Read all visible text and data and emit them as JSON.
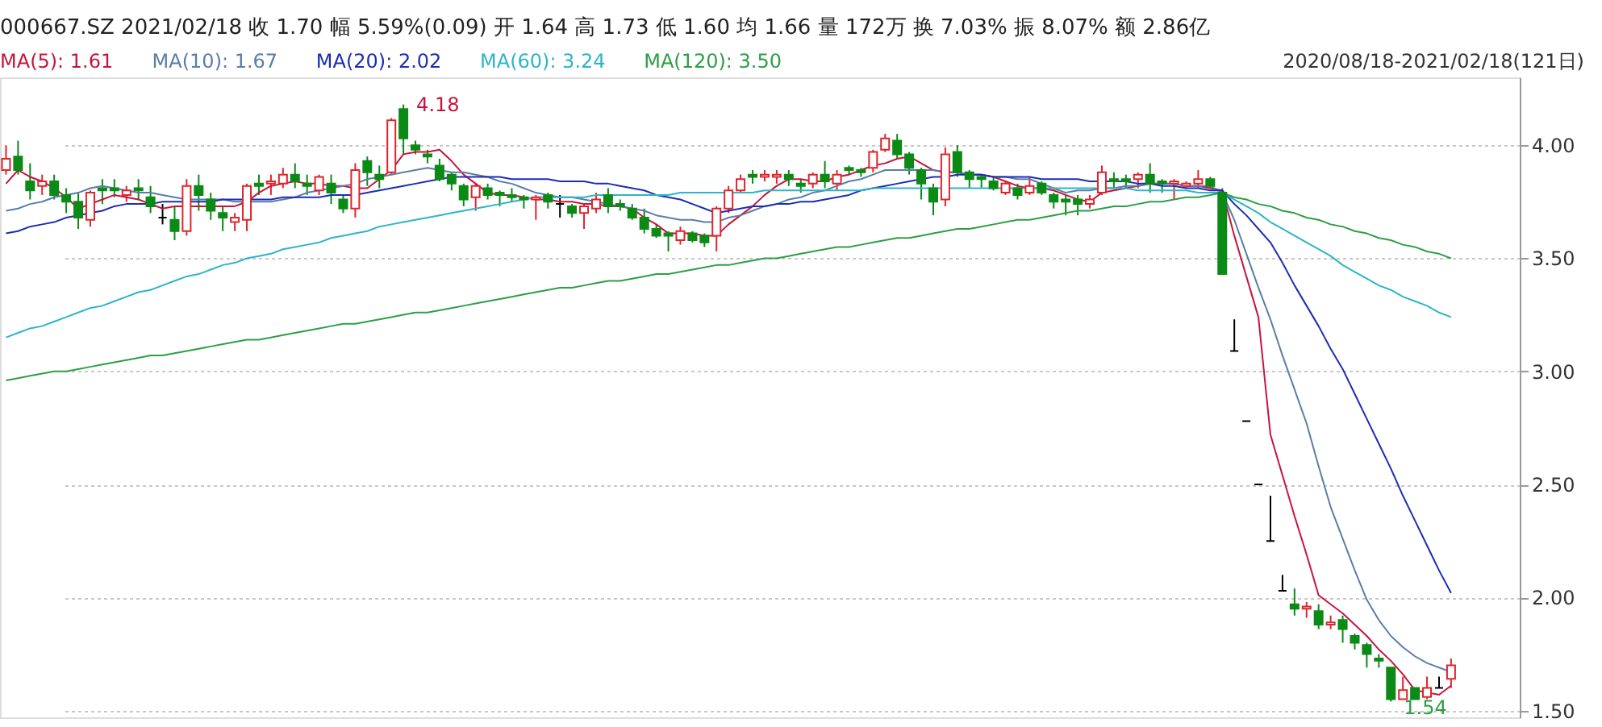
{
  "chart_data": {
    "type": "candlestick",
    "title": "000667.SZ    2021/02/18    收 1.70    幅 5.59%(0.09)    开 1.64    高 1.73    低 1.60    均 1.66    量 172万    换 7.03%    振 8.07%    额 2.86亿",
    "categories": [
      null,
      null,
      null,
      null,
      null,
      null,
      null,
      null,
      null,
      null,
      null,
      null,
      null,
      null,
      null,
      null,
      null,
      null,
      null,
      null,
      null,
      null,
      null,
      null,
      null,
      null,
      null,
      null,
      null,
      null,
      null,
      null,
      null,
      null,
      null,
      null,
      null,
      null,
      null,
      null,
      null,
      null,
      null,
      null,
      null,
      null,
      null,
      null,
      null,
      null,
      null,
      null,
      null,
      null,
      null,
      null,
      null,
      null,
      null,
      null,
      null,
      null,
      null,
      null,
      null,
      null,
      null,
      null,
      null,
      null,
      null,
      null,
      null,
      null,
      null,
      null,
      null,
      null,
      null,
      null,
      null,
      null,
      null,
      null,
      null,
      null,
      null,
      null,
      null,
      null,
      null,
      null,
      null,
      null,
      null,
      null,
      null,
      null,
      null,
      null,
      null,
      null,
      null,
      null,
      null,
      null,
      null,
      null,
      null,
      null,
      null,
      null,
      null,
      null,
      null,
      null,
      null,
      null,
      null,
      null,
      null
    ],
    "ohlc": [
      [
        3.89,
        4.0,
        3.87,
        3.94
      ],
      [
        3.95,
        4.02,
        3.87,
        3.89
      ],
      [
        3.84,
        3.92,
        3.76,
        3.8
      ],
      [
        3.82,
        3.87,
        3.78,
        3.84
      ],
      [
        3.84,
        3.87,
        3.76,
        3.78
      ],
      [
        3.78,
        3.81,
        3.7,
        3.75
      ],
      [
        3.75,
        3.79,
        3.63,
        3.68
      ],
      [
        3.67,
        3.8,
        3.64,
        3.79
      ],
      [
        3.81,
        3.85,
        3.74,
        3.8
      ],
      [
        3.81,
        3.85,
        3.77,
        3.8
      ],
      [
        3.78,
        3.82,
        3.75,
        3.8
      ],
      [
        3.81,
        3.85,
        3.76,
        3.8
      ],
      [
        3.77,
        3.82,
        3.7,
        3.73
      ],
      [
        3.68,
        3.74,
        3.65,
        3.68
      ],
      [
        3.67,
        3.73,
        3.58,
        3.62
      ],
      [
        3.62,
        3.85,
        3.6,
        3.82
      ],
      [
        3.82,
        3.87,
        3.71,
        3.78
      ],
      [
        3.76,
        3.79,
        3.67,
        3.71
      ],
      [
        3.7,
        3.73,
        3.62,
        3.68
      ],
      [
        3.66,
        3.7,
        3.62,
        3.68
      ],
      [
        3.67,
        3.83,
        3.62,
        3.82
      ],
      [
        3.83,
        3.87,
        3.78,
        3.82
      ],
      [
        3.83,
        3.87,
        3.78,
        3.84
      ],
      [
        3.83,
        3.9,
        3.81,
        3.87
      ],
      [
        3.87,
        3.92,
        3.81,
        3.84
      ],
      [
        3.83,
        3.87,
        3.78,
        3.82
      ],
      [
        3.8,
        3.87,
        3.78,
        3.86
      ],
      [
        3.83,
        3.87,
        3.74,
        3.79
      ],
      [
        3.76,
        3.78,
        3.7,
        3.72
      ],
      [
        3.72,
        3.92,
        3.68,
        3.89
      ],
      [
        3.93,
        3.95,
        3.82,
        3.88
      ],
      [
        3.87,
        3.91,
        3.81,
        3.85
      ],
      [
        3.88,
        4.12,
        3.87,
        4.11
      ],
      [
        4.16,
        4.18,
        3.96,
        4.03
      ],
      [
        4.0,
        4.02,
        3.96,
        3.98
      ],
      [
        3.96,
        3.98,
        3.92,
        3.95
      ],
      [
        3.91,
        3.94,
        3.84,
        3.85
      ],
      [
        3.87,
        3.88,
        3.8,
        3.83
      ],
      [
        3.82,
        3.83,
        3.73,
        3.76
      ],
      [
        3.77,
        3.83,
        3.71,
        3.82
      ],
      [
        3.81,
        3.83,
        3.76,
        3.78
      ],
      [
        3.79,
        3.8,
        3.73,
        3.78
      ],
      [
        3.78,
        3.81,
        3.75,
        3.77
      ],
      [
        3.77,
        3.78,
        3.72,
        3.76
      ],
      [
        3.76,
        3.78,
        3.67,
        3.77
      ],
      [
        3.78,
        3.79,
        3.72,
        3.75
      ],
      [
        3.74,
        3.78,
        3.68,
        3.74
      ],
      [
        3.73,
        3.74,
        3.68,
        3.7
      ],
      [
        3.7,
        3.74,
        3.63,
        3.73
      ],
      [
        3.72,
        3.79,
        3.7,
        3.76
      ],
      [
        3.78,
        3.81,
        3.7,
        3.73
      ],
      [
        3.74,
        3.76,
        3.71,
        3.73
      ],
      [
        3.72,
        3.74,
        3.67,
        3.68
      ],
      [
        3.68,
        3.72,
        3.61,
        3.63
      ],
      [
        3.63,
        3.65,
        3.59,
        3.6
      ],
      [
        3.61,
        3.62,
        3.53,
        3.6
      ],
      [
        3.58,
        3.64,
        3.56,
        3.62
      ],
      [
        3.61,
        3.62,
        3.57,
        3.58
      ],
      [
        3.6,
        3.61,
        3.55,
        3.57
      ],
      [
        3.6,
        3.73,
        3.53,
        3.72
      ],
      [
        3.72,
        3.82,
        3.7,
        3.8
      ],
      [
        3.8,
        3.87,
        3.79,
        3.85
      ],
      [
        3.87,
        3.89,
        3.83,
        3.86
      ],
      [
        3.86,
        3.89,
        3.84,
        3.87
      ],
      [
        3.86,
        3.89,
        3.83,
        3.87
      ],
      [
        3.87,
        3.89,
        3.82,
        3.85
      ],
      [
        3.83,
        3.85,
        3.79,
        3.82
      ],
      [
        3.83,
        3.88,
        3.81,
        3.87
      ],
      [
        3.87,
        3.93,
        3.81,
        3.84
      ],
      [
        3.83,
        3.89,
        3.8,
        3.87
      ],
      [
        3.9,
        3.91,
        3.87,
        3.89
      ],
      [
        3.89,
        3.9,
        3.86,
        3.88
      ],
      [
        3.9,
        3.98,
        3.88,
        3.97
      ],
      [
        3.98,
        4.05,
        3.97,
        4.03
      ],
      [
        4.02,
        4.05,
        3.94,
        3.96
      ],
      [
        3.96,
        3.97,
        3.87,
        3.9
      ],
      [
        3.89,
        3.9,
        3.76,
        3.83
      ],
      [
        3.81,
        3.83,
        3.69,
        3.75
      ],
      [
        3.76,
        3.99,
        3.73,
        3.96
      ],
      [
        3.97,
        4.0,
        3.86,
        3.88
      ],
      [
        3.88,
        3.89,
        3.81,
        3.85
      ],
      [
        3.86,
        3.87,
        3.81,
        3.85
      ],
      [
        3.84,
        3.86,
        3.8,
        3.81
      ],
      [
        3.79,
        3.84,
        3.78,
        3.83
      ],
      [
        3.81,
        3.83,
        3.76,
        3.78
      ],
      [
        3.79,
        3.86,
        3.78,
        3.82
      ],
      [
        3.83,
        3.84,
        3.78,
        3.79
      ],
      [
        3.78,
        3.79,
        3.72,
        3.75
      ],
      [
        3.76,
        3.78,
        3.69,
        3.75
      ],
      [
        3.76,
        3.78,
        3.69,
        3.74
      ],
      [
        3.74,
        3.78,
        3.72,
        3.76
      ],
      [
        3.79,
        3.91,
        3.78,
        3.88
      ],
      [
        3.85,
        3.88,
        3.81,
        3.84
      ],
      [
        3.85,
        3.87,
        3.81,
        3.84
      ],
      [
        3.85,
        3.88,
        3.81,
        3.87
      ],
      [
        3.87,
        3.92,
        3.79,
        3.83
      ],
      [
        3.84,
        3.85,
        3.79,
        3.83
      ],
      [
        3.83,
        3.85,
        3.76,
        3.84
      ],
      [
        3.82,
        3.84,
        3.81,
        3.83
      ],
      [
        3.83,
        3.89,
        3.81,
        3.85
      ],
      [
        3.85,
        3.86,
        3.81,
        3.82
      ],
      [
        3.79,
        3.81,
        3.43,
        3.43
      ],
      [
        3.09,
        3.23,
        3.09,
        3.09
      ],
      [
        2.78,
        2.78,
        2.78,
        2.78
      ],
      [
        2.5,
        2.5,
        2.5,
        2.5
      ],
      [
        2.25,
        2.45,
        2.25,
        2.25
      ],
      [
        2.03,
        2.1,
        2.03,
        2.03
      ],
      [
        1.97,
        2.04,
        1.92,
        1.95
      ],
      [
        1.95,
        1.98,
        1.91,
        1.96
      ],
      [
        1.94,
        1.97,
        1.86,
        1.88
      ],
      [
        1.88,
        1.92,
        1.86,
        1.89
      ],
      [
        1.9,
        1.92,
        1.8,
        1.86
      ],
      [
        1.83,
        1.84,
        1.77,
        1.8
      ],
      [
        1.79,
        1.8,
        1.69,
        1.75
      ],
      [
        1.73,
        1.75,
        1.69,
        1.72
      ],
      [
        1.69,
        1.69,
        1.54,
        1.55
      ],
      [
        1.55,
        1.65,
        1.55,
        1.59
      ],
      [
        1.6,
        1.6,
        1.55,
        1.55
      ],
      [
        1.56,
        1.65,
        1.55,
        1.6
      ],
      [
        1.6,
        1.65,
        1.6,
        1.6
      ],
      [
        1.64,
        1.73,
        1.6,
        1.7
      ]
    ],
    "colors": [
      "#e0242c",
      "#0b8a16",
      "#0b8a16",
      "#e0242c",
      "#0b8a16",
      "#0b8a16",
      "#0b8a16",
      "#e0242c",
      "#0b8a16",
      "#0b8a16",
      "#e0242c",
      "#0b8a16",
      "#0b8a16",
      "#000000",
      "#0b8a16",
      "#e0242c",
      "#0b8a16",
      "#0b8a16",
      "#0b8a16",
      "#e0242c",
      "#e0242c",
      "#0b8a16",
      "#e0242c",
      "#e0242c",
      "#0b8a16",
      "#0b8a16",
      "#e0242c",
      "#0b8a16",
      "#0b8a16",
      "#e0242c",
      "#0b8a16",
      "#0b8a16",
      "#e0242c",
      "#0b8a16",
      "#0b8a16",
      "#0b8a16",
      "#0b8a16",
      "#0b8a16",
      "#0b8a16",
      "#e0242c",
      "#0b8a16",
      "#0b8a16",
      "#0b8a16",
      "#0b8a16",
      "#e0242c",
      "#0b8a16",
      "#000000",
      "#0b8a16",
      "#e0242c",
      "#e0242c",
      "#0b8a16",
      "#0b8a16",
      "#0b8a16",
      "#0b8a16",
      "#0b8a16",
      "#0b8a16",
      "#e0242c",
      "#0b8a16",
      "#0b8a16",
      "#e0242c",
      "#e0242c",
      "#e0242c",
      "#0b8a16",
      "#e0242c",
      "#e0242c",
      "#0b8a16",
      "#0b8a16",
      "#e0242c",
      "#0b8a16",
      "#e0242c",
      "#0b8a16",
      "#0b8a16",
      "#e0242c",
      "#e0242c",
      "#0b8a16",
      "#0b8a16",
      "#0b8a16",
      "#0b8a16",
      "#e0242c",
      "#0b8a16",
      "#0b8a16",
      "#0b8a16",
      "#0b8a16",
      "#e0242c",
      "#0b8a16",
      "#e0242c",
      "#0b8a16",
      "#0b8a16",
      "#0b8a16",
      "#0b8a16",
      "#e0242c",
      "#e0242c",
      "#0b8a16",
      "#0b8a16",
      "#e0242c",
      "#0b8a16",
      "#0b8a16",
      "#e0242c",
      "#e0242c",
      "#e0242c",
      "#0b8a16",
      "#0b8a16",
      "#000000",
      "#000000",
      "#000000",
      "#000000",
      "#000000",
      "#0b8a16",
      "#e0242c",
      "#0b8a16",
      "#e0242c",
      "#0b8a16",
      "#0b8a16",
      "#0b8a16",
      "#0b8a16",
      "#0b8a16",
      "#e0242c",
      "#0b8a16",
      "#e0242c",
      "#000000",
      "#e0242c"
    ],
    "series": [
      {
        "name": "MA(5): 1.61",
        "type": "line",
        "color": "#c8143c",
        "values": [
          3.83,
          3.89,
          3.86,
          3.84,
          3.81,
          3.77,
          3.72,
          3.74,
          3.76,
          3.78,
          3.77,
          3.76,
          3.74,
          3.72,
          3.73,
          3.73,
          3.73,
          3.73,
          3.73,
          3.73,
          3.75,
          3.79,
          3.82,
          3.83,
          3.84,
          3.83,
          3.83,
          3.82,
          3.82,
          3.81,
          3.81,
          3.85,
          3.89,
          3.96,
          3.97,
          3.97,
          3.98,
          3.93,
          3.87,
          3.83,
          3.79,
          3.78,
          3.78,
          3.77,
          3.76,
          3.76,
          3.75,
          3.75,
          3.74,
          3.74,
          3.73,
          3.73,
          3.72,
          3.68,
          3.65,
          3.61,
          3.61,
          3.61,
          3.6,
          3.6,
          3.65,
          3.69,
          3.73,
          3.78,
          3.82,
          3.85,
          3.85,
          3.84,
          3.84,
          3.86,
          3.87,
          3.89,
          3.91,
          3.92,
          3.94,
          3.95,
          3.92,
          3.89,
          3.88,
          3.88,
          3.87,
          3.87,
          3.86,
          3.84,
          3.82,
          3.81,
          3.81,
          3.8,
          3.78,
          3.76,
          3.75,
          3.79,
          3.8,
          3.81,
          3.82,
          3.83,
          3.83,
          3.83,
          3.82,
          3.82,
          3.81,
          3.8,
          3.6,
          3.42,
          3.24,
          2.72,
          2.54,
          2.36,
          2.19,
          2.01,
          1.97,
          1.93,
          1.88,
          1.83,
          1.77,
          1.72,
          1.66,
          1.59,
          1.58,
          1.57,
          1.61
        ]
      },
      {
        "name": "MA(10): 1.67",
        "type": "line",
        "color": "#5a7ea8",
        "values": [
          3.71,
          3.72,
          3.74,
          3.75,
          3.77,
          3.78,
          3.79,
          3.81,
          3.82,
          3.81,
          3.8,
          3.79,
          3.79,
          3.78,
          3.77,
          3.76,
          3.76,
          3.76,
          3.76,
          3.75,
          3.75,
          3.75,
          3.75,
          3.76,
          3.77,
          3.79,
          3.8,
          3.81,
          3.82,
          3.83,
          3.85,
          3.86,
          3.87,
          3.88,
          3.89,
          3.9,
          3.89,
          3.88,
          3.88,
          3.87,
          3.86,
          3.84,
          3.83,
          3.81,
          3.79,
          3.78,
          3.77,
          3.77,
          3.76,
          3.75,
          3.74,
          3.73,
          3.72,
          3.71,
          3.69,
          3.68,
          3.67,
          3.67,
          3.66,
          3.66,
          3.68,
          3.69,
          3.71,
          3.73,
          3.74,
          3.76,
          3.77,
          3.79,
          3.8,
          3.82,
          3.84,
          3.85,
          3.87,
          3.89,
          3.89,
          3.89,
          3.89,
          3.89,
          3.88,
          3.88,
          3.87,
          3.87,
          3.86,
          3.86,
          3.85,
          3.85,
          3.83,
          3.81,
          3.79,
          3.8,
          3.8,
          3.81,
          3.81,
          3.82,
          3.82,
          3.83,
          3.83,
          3.83,
          3.82,
          3.82,
          3.82,
          3.79,
          3.67,
          3.52,
          3.37,
          3.23,
          3.07,
          2.92,
          2.77,
          2.58,
          2.4,
          2.26,
          2.12,
          1.99,
          1.9,
          1.83,
          1.78,
          1.74,
          1.71,
          1.69,
          1.67
        ]
      },
      {
        "name": "MA(20): 2.02",
        "type": "line",
        "color": "#1c2db4",
        "values": [
          3.61,
          3.62,
          3.64,
          3.65,
          3.66,
          3.68,
          3.69,
          3.7,
          3.71,
          3.73,
          3.74,
          3.74,
          3.74,
          3.75,
          3.75,
          3.75,
          3.75,
          3.75,
          3.76,
          3.76,
          3.76,
          3.76,
          3.76,
          3.77,
          3.77,
          3.77,
          3.77,
          3.78,
          3.78,
          3.78,
          3.79,
          3.8,
          3.81,
          3.82,
          3.83,
          3.84,
          3.85,
          3.86,
          3.86,
          3.86,
          3.86,
          3.86,
          3.85,
          3.85,
          3.85,
          3.85,
          3.84,
          3.84,
          3.84,
          3.83,
          3.83,
          3.82,
          3.81,
          3.8,
          3.78,
          3.77,
          3.76,
          3.74,
          3.72,
          3.7,
          3.71,
          3.72,
          3.73,
          3.73,
          3.74,
          3.74,
          3.75,
          3.75,
          3.76,
          3.77,
          3.78,
          3.8,
          3.81,
          3.82,
          3.83,
          3.84,
          3.85,
          3.86,
          3.86,
          3.87,
          3.87,
          3.87,
          3.86,
          3.86,
          3.86,
          3.86,
          3.85,
          3.85,
          3.85,
          3.85,
          3.84,
          3.84,
          3.84,
          3.84,
          3.83,
          3.83,
          3.82,
          3.82,
          3.81,
          3.81,
          3.8,
          3.8,
          3.74,
          3.69,
          3.63,
          3.57,
          3.48,
          3.38,
          3.29,
          3.2,
          3.1,
          3.01,
          2.9,
          2.79,
          2.68,
          2.57,
          2.45,
          2.34,
          2.23,
          2.12,
          2.02
        ]
      },
      {
        "name": "MA(60): 3.24",
        "type": "line",
        "color": "#2cb5c8",
        "values": [
          3.15,
          3.17,
          3.19,
          3.2,
          3.22,
          3.24,
          3.26,
          3.28,
          3.29,
          3.31,
          3.33,
          3.35,
          3.36,
          3.38,
          3.4,
          3.42,
          3.43,
          3.45,
          3.47,
          3.48,
          3.5,
          3.51,
          3.52,
          3.54,
          3.55,
          3.56,
          3.57,
          3.59,
          3.6,
          3.61,
          3.62,
          3.64,
          3.65,
          3.66,
          3.67,
          3.68,
          3.69,
          3.7,
          3.71,
          3.72,
          3.73,
          3.74,
          3.75,
          3.76,
          3.77,
          3.77,
          3.77,
          3.77,
          3.77,
          3.78,
          3.78,
          3.78,
          3.78,
          3.78,
          3.78,
          3.78,
          3.79,
          3.79,
          3.79,
          3.79,
          3.79,
          3.79,
          3.79,
          3.8,
          3.8,
          3.8,
          3.8,
          3.8,
          3.8,
          3.8,
          3.8,
          3.8,
          3.81,
          3.81,
          3.81,
          3.81,
          3.81,
          3.81,
          3.81,
          3.81,
          3.81,
          3.81,
          3.81,
          3.81,
          3.81,
          3.81,
          3.81,
          3.81,
          3.81,
          3.81,
          3.81,
          3.81,
          3.81,
          3.81,
          3.8,
          3.8,
          3.8,
          3.8,
          3.8,
          3.79,
          3.79,
          3.79,
          3.76,
          3.73,
          3.7,
          3.66,
          3.63,
          3.6,
          3.57,
          3.54,
          3.51,
          3.47,
          3.44,
          3.41,
          3.38,
          3.36,
          3.33,
          3.31,
          3.29,
          3.26,
          3.24
        ]
      },
      {
        "name": "MA(120): 3.50",
        "type": "line",
        "color": "#2e9e46",
        "values": [
          2.96,
          2.97,
          2.98,
          2.99,
          3.0,
          3.0,
          3.01,
          3.02,
          3.03,
          3.04,
          3.05,
          3.06,
          3.07,
          3.07,
          3.08,
          3.09,
          3.1,
          3.11,
          3.12,
          3.13,
          3.14,
          3.14,
          3.15,
          3.16,
          3.17,
          3.18,
          3.19,
          3.2,
          3.21,
          3.21,
          3.22,
          3.23,
          3.24,
          3.25,
          3.26,
          3.26,
          3.27,
          3.28,
          3.29,
          3.3,
          3.31,
          3.32,
          3.33,
          3.34,
          3.35,
          3.36,
          3.37,
          3.37,
          3.38,
          3.39,
          3.4,
          3.4,
          3.41,
          3.42,
          3.43,
          3.43,
          3.44,
          3.45,
          3.46,
          3.47,
          3.47,
          3.48,
          3.49,
          3.5,
          3.5,
          3.51,
          3.52,
          3.53,
          3.54,
          3.55,
          3.55,
          3.56,
          3.57,
          3.58,
          3.59,
          3.59,
          3.6,
          3.61,
          3.62,
          3.63,
          3.63,
          3.64,
          3.65,
          3.66,
          3.67,
          3.67,
          3.68,
          3.69,
          3.7,
          3.71,
          3.71,
          3.72,
          3.73,
          3.73,
          3.74,
          3.75,
          3.75,
          3.76,
          3.77,
          3.77,
          3.78,
          3.79,
          3.77,
          3.76,
          3.74,
          3.73,
          3.71,
          3.7,
          3.68,
          3.67,
          3.65,
          3.64,
          3.62,
          3.61,
          3.59,
          3.58,
          3.56,
          3.55,
          3.53,
          3.52,
          3.5
        ]
      }
    ],
    "ylim": [
      1.47,
      4.3
    ],
    "yticks": [
      {
        "value": 1.5,
        "label": "1.50"
      },
      {
        "value": 2.0,
        "label": "2.00"
      },
      {
        "value": 2.5,
        "label": "2.50"
      },
      {
        "value": 3.0,
        "label": "3.00"
      },
      {
        "value": 3.5,
        "label": "3.50"
      },
      {
        "value": 4.0,
        "label": "4.00"
      }
    ],
    "tick_labels": "y",
    "grid": "y",
    "annotations": [
      "2020/08/18-2021/02/18(121日)",
      "4.18",
      "1.54"
    ]
  }
}
